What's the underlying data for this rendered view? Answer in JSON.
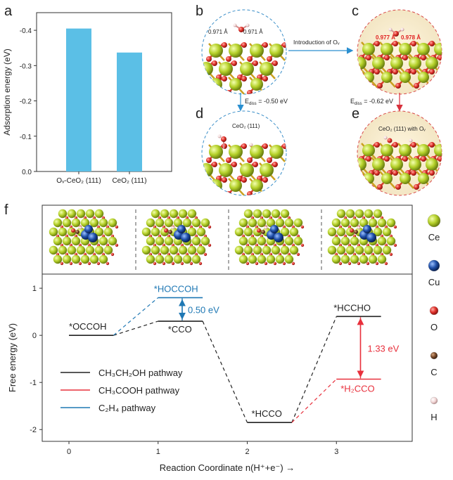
{
  "panels": {
    "a": {
      "label": "a"
    },
    "b": {
      "label": "b",
      "bond1": "0.971 Å",
      "bond2": "0.971 Å"
    },
    "c": {
      "label": "c",
      "bond1": "0.977 Å",
      "bond2": "0.978 Å"
    },
    "d": {
      "label": "d",
      "caption": "CeO₂ (111)"
    },
    "e": {
      "label": "e",
      "caption": "CeO₂ (111) with Oᵥ"
    },
    "f": {
      "label": "f"
    }
  },
  "arrows": {
    "intro": "Introduction of Oᵥ",
    "ediss_left": "-0.50 eV",
    "ediss_right": "-0.62 eV",
    "ediss_symbol": "E",
    "ediss_sub": "diss"
  },
  "chart_data": [
    {
      "type": "bar",
      "categories": [
        "Oᵥ-CeO₂ (111)",
        "CeO₂ (111)"
      ],
      "values": [
        -0.405,
        -0.337
      ],
      "ylabel": "Adsorption energy (eV)",
      "ylim": [
        0.0,
        -0.45
      ],
      "yticks": [
        "0.0",
        "-0.1",
        "-0.2",
        "-0.3",
        "-0.4"
      ],
      "color": "#5bbfe6"
    },
    {
      "type": "line",
      "xlabel": "Reaction Coordinate n(H⁺+e⁻) →",
      "ylabel": "Free energy (eV)",
      "xlim": [
        -0.3,
        3.85
      ],
      "ylim": [
        -2.25,
        1.3
      ],
      "xticks": [
        0,
        1,
        2,
        3
      ],
      "yticks": [
        1,
        0,
        -1,
        -2
      ],
      "levels": [
        {
          "label": "*OCCOH",
          "x": [
            0,
            0.5
          ],
          "y": 0.0,
          "color": "#222222"
        },
        {
          "label": "*CCO",
          "x": [
            1,
            1.5
          ],
          "y": 0.3,
          "color": "#222222"
        },
        {
          "label": "*HOCCOH",
          "x": [
            1,
            1.5
          ],
          "y": 0.8,
          "color": "#1f78b4"
        },
        {
          "label": "*HCCO",
          "x": [
            2,
            2.5
          ],
          "y": -1.85,
          "color": "#222222"
        },
        {
          "label": "*HCCHO",
          "x": [
            3,
            3.5
          ],
          "y": 0.4,
          "color": "#222222"
        },
        {
          "label": "*H₂CCO",
          "x": [
            3,
            3.5
          ],
          "y": -0.93,
          "color": "#e8303c"
        }
      ],
      "differences": [
        {
          "label": "0.50 eV",
          "color": "#1f78b4"
        },
        {
          "label": "1.33 eV",
          "color": "#e8303c"
        }
      ],
      "legend": [
        {
          "name": "CH₃CH₂OH pathway",
          "color": "#222222"
        },
        {
          "name": "CH₃COOH pathway",
          "color": "#e8303c"
        },
        {
          "name": "C₂H₄ pathway",
          "color": "#1f78b4"
        }
      ],
      "legend_position": "bottom-left"
    }
  ],
  "element_legend": [
    {
      "symbol": "Ce",
      "color": "#b5d12a"
    },
    {
      "symbol": "Cu",
      "color": "#1f4fa8"
    },
    {
      "symbol": "O",
      "color": "#e0302a"
    },
    {
      "symbol": "C",
      "color": "#7a4a2a"
    },
    {
      "symbol": "H",
      "color": "#f2d6d6"
    }
  ]
}
